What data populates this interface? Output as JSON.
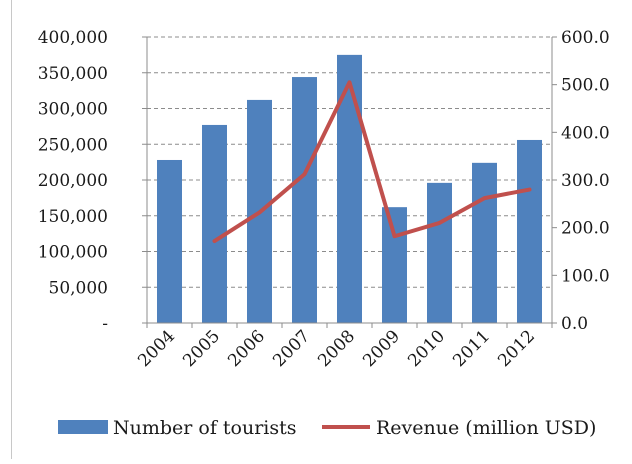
{
  "chart_data": {
    "type": "bar",
    "categories": [
      "2004",
      "2005",
      "2006",
      "2007",
      "2008",
      "2009",
      "2010",
      "2011",
      "2012"
    ],
    "series": [
      {
        "name": "Number of tourists",
        "type": "bar",
        "axis": "left",
        "color": "#4f81bd",
        "values": [
          228000,
          277000,
          312000,
          344000,
          375000,
          162000,
          196000,
          224000,
          256000
        ]
      },
      {
        "name": "Revenue (million USD)",
        "type": "line",
        "axis": "right",
        "color": "#c0504d",
        "values": [
          null,
          172,
          232,
          312,
          505,
          182,
          210,
          262,
          280
        ]
      }
    ],
    "y_left": {
      "min": 0,
      "max": 400000,
      "ticks": [
        0,
        50000,
        100000,
        150000,
        200000,
        250000,
        300000,
        350000,
        400000
      ],
      "tick_labels": [
        "-",
        "50,000",
        "100,000",
        "150,000",
        "200,000",
        "250,000",
        "300,000",
        "350,000",
        "400,000"
      ]
    },
    "y_right": {
      "min": 0,
      "max": 600,
      "ticks": [
        0,
        100,
        200,
        300,
        400,
        500,
        600
      ],
      "tick_labels": [
        "0.0",
        "100.0",
        "200.0",
        "300.0",
        "400.0",
        "500.0",
        "600.0"
      ]
    },
    "grid": "horizontal dashed",
    "legend": "bottom",
    "title": "",
    "xlabel": "",
    "ylabel": ""
  }
}
